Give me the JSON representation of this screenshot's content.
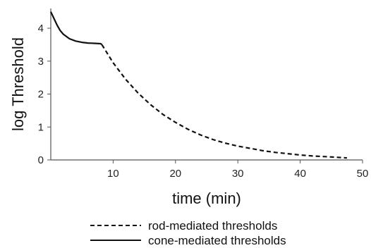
{
  "chart_data": {
    "type": "line",
    "xlabel": "time (min)",
    "ylabel": "log Threshold",
    "xlim": [
      0,
      50
    ],
    "ylim": [
      0,
      4.6
    ],
    "x_ticks": [
      10,
      20,
      30,
      40,
      50
    ],
    "y_ticks": [
      0,
      1,
      2,
      3,
      4
    ],
    "grid": false,
    "legend_position": "bottom",
    "series": [
      {
        "name": "rod-mediated thresholds",
        "style": "dashed",
        "color": "#111111",
        "x": [
          8.2,
          10,
          12,
          14,
          16,
          18,
          20,
          22,
          24,
          26,
          28,
          30,
          32,
          34,
          36,
          38,
          40,
          42,
          44,
          46,
          47.5
        ],
        "y": [
          3.5,
          2.95,
          2.45,
          2.03,
          1.68,
          1.38,
          1.14,
          0.93,
          0.76,
          0.62,
          0.51,
          0.42,
          0.35,
          0.28,
          0.23,
          0.19,
          0.15,
          0.12,
          0.1,
          0.08,
          0.06
        ]
      },
      {
        "name": "cone-mediated thresholds",
        "style": "solid",
        "color": "#111111",
        "x": [
          0,
          0.5,
          1,
          1.5,
          2,
          3,
          4,
          5,
          6,
          7,
          8,
          8.2
        ],
        "y": [
          4.5,
          4.3,
          4.1,
          3.93,
          3.82,
          3.68,
          3.61,
          3.57,
          3.55,
          3.54,
          3.53,
          3.5
        ]
      }
    ]
  }
}
